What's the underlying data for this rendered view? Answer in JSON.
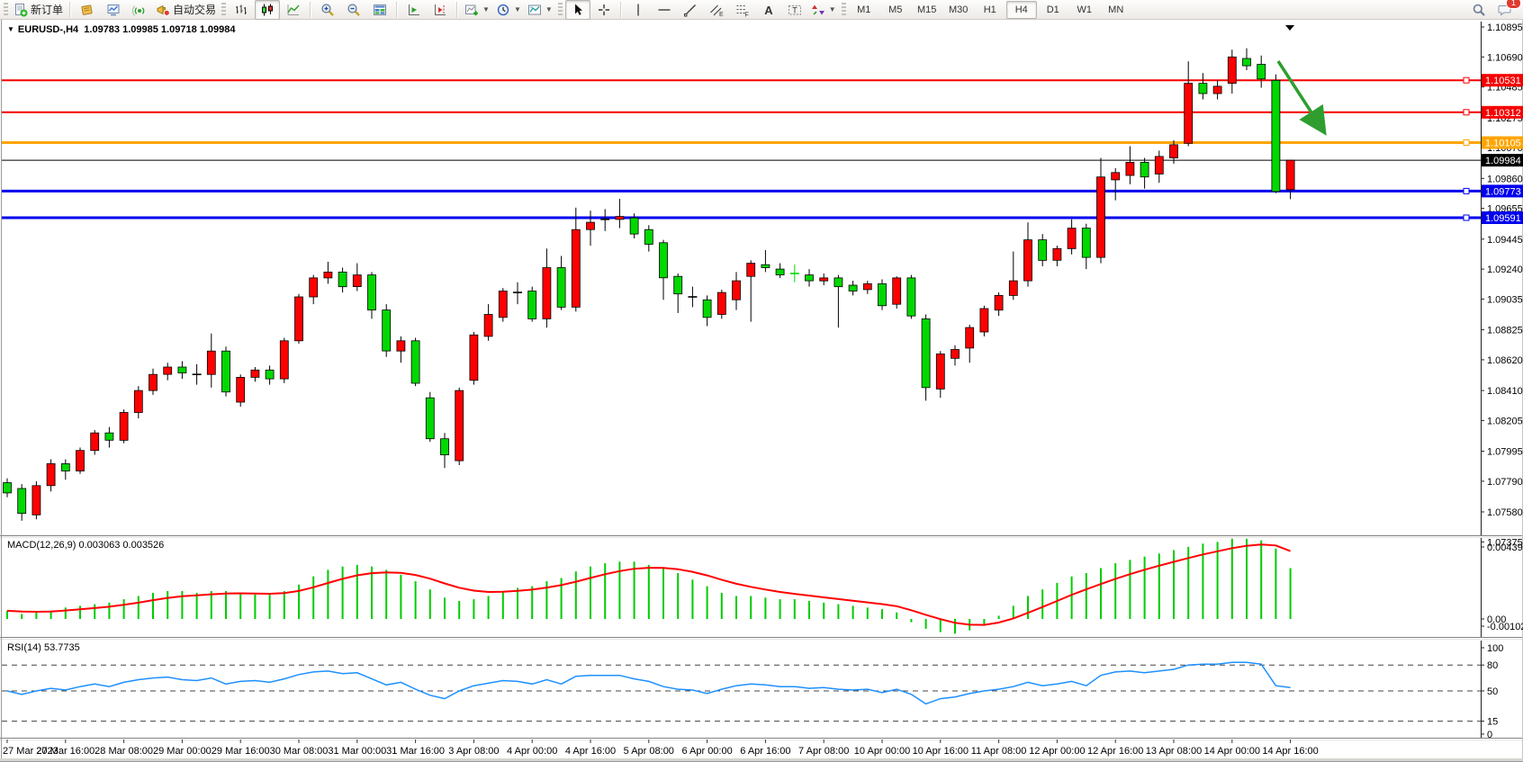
{
  "toolbar": {
    "new_order": "新订单",
    "auto_trading": "自动交易",
    "timeframes": [
      "M1",
      "M5",
      "M15",
      "M30",
      "H1",
      "H4",
      "D1",
      "W1",
      "MN"
    ],
    "active_timeframe": "H4",
    "chat_badge": "1"
  },
  "chart": {
    "symbol_period": "EURUSD-,H4",
    "ohlc_text": "1.09783 1.09985 1.09718 1.09984"
  },
  "price_axis": {
    "labels": [
      "1.10895",
      "1.10690",
      "1.10485",
      "1.10275",
      "1.10070",
      "1.09860",
      "1.09655",
      "1.09445",
      "1.09240",
      "1.09035",
      "1.08825",
      "1.08620",
      "1.08410",
      "1.08205",
      "1.07995",
      "1.07790",
      "1.07580",
      "1.07375"
    ]
  },
  "time_axis": {
    "labels": [
      "27 Mar 2023",
      "27 Mar 16:00",
      "28 Mar 08:00",
      "29 Mar 00:00",
      "29 Mar 16:00",
      "30 Mar 08:00",
      "31 Mar 00:00",
      "31 Mar 16:00",
      "3 Apr 08:00",
      "4 Apr 00:00",
      "4 Apr 16:00",
      "5 Apr 08:00",
      "6 Apr 00:00",
      "6 Apr 16:00",
      "7 Apr 08:00",
      "10 Apr 00:00",
      "10 Apr 16:00",
      "11 Apr 08:00",
      "12 Apr 00:00",
      "12 Apr 16:00",
      "13 Apr 08:00",
      "14 Apr 00:00",
      "14 Apr 16:00"
    ]
  },
  "levels": [
    {
      "price": 1.10531,
      "label": "1.10531",
      "color": "#f60000",
      "width": 2
    },
    {
      "price": 1.10312,
      "label": "1.10312",
      "color": "#f60000",
      "width": 2
    },
    {
      "price": 1.10105,
      "label": "1.10105",
      "color": "#ffa500",
      "width": 3
    },
    {
      "price": 1.09984,
      "label": "1.09984",
      "color": "#000000",
      "width": 1
    },
    {
      "price": 1.09773,
      "label": "1.09773",
      "color": "#0000ee",
      "width": 3
    },
    {
      "price": 1.09591,
      "label": "1.09591",
      "color": "#0000ee",
      "width": 3
    }
  ],
  "indicators": {
    "macd_label": "MACD(12,26,9) 0.003063 0.003526",
    "macd_axis": [
      "0.004393",
      "0.00",
      "-0.001021"
    ],
    "rsi_label": "RSI(14) 53.7735",
    "rsi_axis": [
      "100",
      "80",
      "50",
      "15",
      "0"
    ]
  },
  "annotations": {
    "arrow_color": "#2f9e2f"
  },
  "chart_data": {
    "type": "candlestick",
    "symbol": "EURUSD-",
    "period": "H4",
    "up_color": "#ff0000",
    "down_color": "#00d800",
    "doji_color": "#000000",
    "price_range": [
      1.07375,
      1.10895
    ],
    "candles": [
      [
        1.0778,
        1.0781,
        1.0768,
        1.0771
      ],
      [
        1.0774,
        1.0777,
        1.0752,
        1.0757
      ],
      [
        1.0756,
        1.0779,
        1.0753,
        1.0776
      ],
      [
        1.0776,
        1.0794,
        1.0772,
        1.0791
      ],
      [
        1.0791,
        1.0794,
        1.078,
        1.0786
      ],
      [
        1.0786,
        1.0802,
        1.0784,
        1.08
      ],
      [
        1.08,
        1.0814,
        1.0797,
        1.0812
      ],
      [
        1.0812,
        1.0816,
        1.0802,
        1.0807
      ],
      [
        1.0807,
        1.0828,
        1.0805,
        1.0826
      ],
      [
        1.0826,
        1.0844,
        1.0822,
        1.0841
      ],
      [
        1.0841,
        1.0856,
        1.0838,
        1.0852
      ],
      [
        1.0852,
        1.086,
        1.0848,
        1.0857
      ],
      [
        1.0857,
        1.0861,
        1.0849,
        1.0853
      ],
      [
        1.0852,
        1.0859,
        1.0845,
        1.0852
      ],
      [
        1.0852,
        1.088,
        1.0843,
        1.0868
      ],
      [
        1.0868,
        1.0871,
        1.0837,
        1.084
      ],
      [
        1.0833,
        1.0852,
        1.083,
        1.085
      ],
      [
        1.085,
        1.0857,
        1.0847,
        1.0855
      ],
      [
        1.0855,
        1.0858,
        1.0845,
        1.0849
      ],
      [
        1.0849,
        1.0877,
        1.0846,
        1.0875
      ],
      [
        1.0875,
        1.0907,
        1.0873,
        1.0905
      ],
      [
        1.0905,
        1.092,
        1.09,
        1.0918
      ],
      [
        1.0918,
        1.0929,
        1.0914,
        1.0922
      ],
      [
        1.0922,
        1.0925,
        1.0908,
        1.0912
      ],
      [
        1.0912,
        1.0928,
        1.0909,
        1.092
      ],
      [
        1.092,
        1.0922,
        1.089,
        1.0896
      ],
      [
        1.0896,
        1.09,
        1.0864,
        1.0868
      ],
      [
        1.0868,
        1.0878,
        1.086,
        1.0875
      ],
      [
        1.0875,
        1.0877,
        1.0844,
        1.0846
      ],
      [
        1.0836,
        1.084,
        1.0806,
        1.0808
      ],
      [
        1.0808,
        1.0812,
        1.0788,
        1.0797
      ],
      [
        1.0793,
        1.0843,
        1.079,
        1.0841
      ],
      [
        1.0848,
        1.0881,
        1.0845,
        1.0879
      ],
      [
        1.0878,
        1.09,
        1.0875,
        1.0893
      ],
      [
        1.0891,
        1.0911,
        1.0888,
        1.0909
      ],
      [
        1.0908,
        1.0915,
        1.09,
        1.0908
      ],
      [
        1.0909,
        1.0912,
        1.0888,
        1.089
      ],
      [
        1.089,
        1.0938,
        1.0884,
        1.0925
      ],
      [
        1.0925,
        1.0933,
        1.0896,
        1.0898
      ],
      [
        1.0898,
        1.0966,
        1.0895,
        1.0951
      ],
      [
        1.0951,
        1.0964,
        1.094,
        1.0956
      ],
      [
        1.0958,
        1.0965,
        1.095,
        1.0958
      ],
      [
        1.0958,
        1.0972,
        1.0952,
        1.096
      ],
      [
        1.0959,
        1.0962,
        1.0945,
        1.0948
      ],
      [
        1.0951,
        1.0954,
        1.0936,
        1.0941
      ],
      [
        1.0942,
        1.0944,
        1.0903,
        1.0918
      ],
      [
        1.0919,
        1.0921,
        1.0894,
        1.0907
      ],
      [
        1.0905,
        1.0912,
        1.0898,
        1.0905
      ],
      [
        1.0903,
        1.0906,
        1.0885,
        1.0891
      ],
      [
        1.0893,
        1.091,
        1.089,
        1.0908
      ],
      [
        1.0903,
        1.0922,
        1.0896,
        1.0916
      ],
      [
        1.0919,
        1.093,
        1.0888,
        1.0928
      ],
      [
        1.0927,
        1.0937,
        1.0922,
        1.0925
      ],
      [
        1.0924,
        1.0928,
        1.0918,
        1.092
      ],
      [
        1.0921,
        1.0927,
        1.0915,
        1.0921,
        "g"
      ],
      [
        1.092,
        1.0924,
        1.0912,
        1.0916
      ],
      [
        1.0916,
        1.0921,
        1.0913,
        1.0918
      ],
      [
        1.0918,
        1.092,
        1.0884,
        1.0912
      ],
      [
        1.0913,
        1.0916,
        1.0906,
        1.0909
      ],
      [
        1.091,
        1.0916,
        1.0907,
        1.0914
      ],
      [
        1.0914,
        1.0917,
        1.0896,
        1.0899
      ],
      [
        1.09,
        1.0919,
        1.0897,
        1.0918
      ],
      [
        1.0918,
        1.092,
        1.089,
        1.0892
      ],
      [
        1.089,
        1.0893,
        1.0834,
        1.0843
      ],
      [
        1.0842,
        1.0868,
        1.0836,
        1.0866
      ],
      [
        1.0863,
        1.0872,
        1.0858,
        1.0869
      ],
      [
        1.087,
        1.0886,
        1.086,
        1.0884
      ],
      [
        1.0881,
        1.0899,
        1.0878,
        1.0897
      ],
      [
        1.0896,
        1.0908,
        1.0892,
        1.0906
      ],
      [
        1.0906,
        1.0936,
        1.0903,
        1.0916
      ],
      [
        1.0916,
        1.0956,
        1.0912,
        1.0944
      ],
      [
        1.0944,
        1.0948,
        1.0926,
        1.093
      ],
      [
        1.093,
        1.094,
        1.0926,
        1.0938
      ],
      [
        1.0938,
        1.0958,
        1.0934,
        1.0952
      ],
      [
        1.0952,
        1.0955,
        1.0924,
        1.0932
      ],
      [
        1.0932,
        1.1,
        1.0928,
        1.0987
      ],
      [
        1.0985,
        1.0993,
        1.0971,
        1.099
      ],
      [
        1.0988,
        1.1008,
        1.0982,
        1.0997
      ],
      [
        1.0997,
        1.1,
        1.0979,
        1.0987
      ],
      [
        1.0989,
        1.1005,
        1.0983,
        1.1001
      ],
      [
        1.1,
        1.1012,
        1.0996,
        1.1009
      ],
      [
        1.101,
        1.1066,
        1.1008,
        1.1051
      ],
      [
        1.1051,
        1.1058,
        1.104,
        1.1044
      ],
      [
        1.1044,
        1.1053,
        1.104,
        1.1049
      ],
      [
        1.1051,
        1.1074,
        1.1044,
        1.1069
      ],
      [
        1.1068,
        1.1075,
        1.106,
        1.1063
      ],
      [
        1.1064,
        1.107,
        1.1048,
        1.1054
      ],
      [
        1.1053,
        1.1057,
        1.0976,
        1.0977
      ],
      [
        1.09783,
        1.09985,
        1.09718,
        1.09984
      ]
    ],
    "macd": [
      0.0005,
      0.0003,
      0.0004,
      0.0005,
      0.0007,
      0.0008,
      0.0009,
      0.001,
      0.0012,
      0.0014,
      0.0016,
      0.0017,
      0.0017,
      0.0016,
      0.0017,
      0.0017,
      0.0016,
      0.0015,
      0.0015,
      0.0017,
      0.0021,
      0.0026,
      0.003,
      0.0032,
      0.0033,
      0.0032,
      0.003,
      0.0027,
      0.0023,
      0.0018,
      0.0013,
      0.0011,
      0.0012,
      0.0014,
      0.0017,
      0.0019,
      0.002,
      0.0023,
      0.0025,
      0.0029,
      0.0032,
      0.0034,
      0.0035,
      0.0035,
      0.0033,
      0.0031,
      0.0028,
      0.0024,
      0.002,
      0.0016,
      0.0014,
      0.0014,
      0.0013,
      0.0012,
      0.0012,
      0.0011,
      0.001,
      0.0009,
      0.0008,
      0.0007,
      0.0006,
      0.0004,
      -0.0002,
      -0.0006,
      -0.0008,
      -0.0009,
      -0.0007,
      -0.0004,
      0.0002,
      0.0008,
      0.0014,
      0.0018,
      0.0022,
      0.0026,
      0.0028,
      0.0031,
      0.0034,
      0.0036,
      0.0038,
      0.004,
      0.0042,
      0.0044,
      0.0046,
      0.0047,
      0.0049,
      0.0049,
      0.0048,
      0.0043,
      0.0031
    ],
    "rsi": [
      50,
      46,
      50,
      53,
      51,
      55,
      58,
      55,
      60,
      63,
      65,
      66,
      63,
      62,
      65,
      58,
      61,
      62,
      60,
      64,
      69,
      72,
      73,
      70,
      71,
      64,
      57,
      60,
      52,
      45,
      41,
      50,
      56,
      59,
      62,
      61,
      58,
      63,
      58,
      67,
      68,
      68,
      68,
      64,
      61,
      55,
      52,
      51,
      47,
      52,
      56,
      58,
      57,
      55,
      55,
      53,
      54,
      52,
      51,
      52,
      48,
      52,
      46,
      35,
      41,
      43,
      47,
      50,
      52,
      55,
      60,
      56,
      58,
      61,
      56,
      68,
      72,
      73,
      71,
      73,
      75,
      80,
      81,
      81,
      83,
      83,
      81,
      56,
      54
    ],
    "rsi_levels": [
      80,
      50,
      15
    ],
    "macd_color": "#00cc00",
    "signal_color": "#ff0000",
    "rsi_color": "#1e90ff"
  }
}
